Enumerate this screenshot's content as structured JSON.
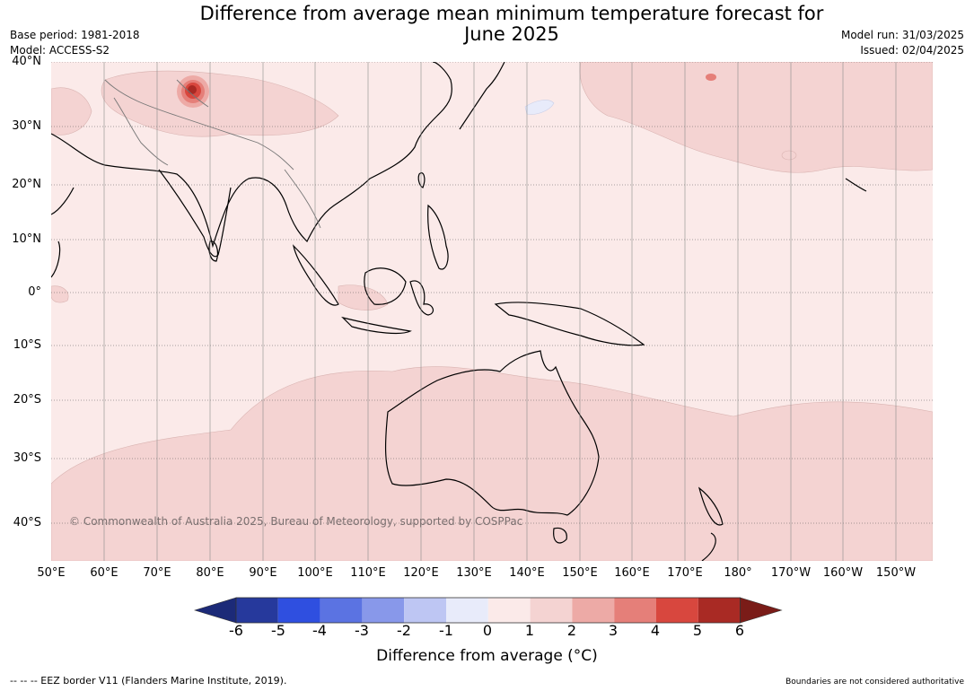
{
  "title": "Difference from average mean minimum temperature forecast for June 2025",
  "base_period": "Base period: 1981-2018",
  "model": "Model: ACCESS-S2",
  "model_run": "Model run: 31/03/2025",
  "issued": "Issued: 02/04/2025",
  "copyright": "© Commonwealth of Australia 2025, Bureau of Meteorology, supported by COSPPac",
  "lat_labels": [
    "40°N",
    "30°N",
    "20°N",
    "10°N",
    "0°",
    "10°S",
    "20°S",
    "30°S",
    "40°S"
  ],
  "lon_labels": [
    "50°E",
    "60°E",
    "70°E",
    "80°E",
    "90°E",
    "100°E",
    "110°E",
    "120°E",
    "130°E",
    "140°E",
    "150°E",
    "160°E",
    "170°E",
    "180°",
    "170°W",
    "160°W",
    "150°W"
  ],
  "colorbar": {
    "ticks": [
      "-6",
      "-5",
      "-4",
      "-3",
      "-2",
      "-1",
      "0",
      "1",
      "2",
      "3",
      "4",
      "5",
      "6"
    ],
    "colors": [
      "#26399c",
      "#2f4fe0",
      "#5b73e2",
      "#8898ea",
      "#bec6f3",
      "#e8ebfa",
      "#fbeae9",
      "#f4d3d2",
      "#edaaa6",
      "#e57f79",
      "#d8473e",
      "#a92a24"
    ],
    "under_color": "#1c2a78",
    "over_color": "#7a1c18",
    "label": "Difference from average (°C)"
  },
  "footer_left": "--  --  -- EEZ border V11 (Flanders Marine Institute, 2019).",
  "footer_right": "Boundaries are not considered authoritative",
  "chart_data": {
    "type": "heatmap",
    "title": "Difference from average mean minimum temperature forecast for June 2025",
    "xlabel": "",
    "ylabel": "",
    "colorbar_label": "Difference from average (°C)",
    "x_range": [
      "50°E",
      "150°W"
    ],
    "y_range": [
      "45°S",
      "40°N"
    ],
    "levels": [
      -6,
      -5,
      -4,
      -3,
      -2,
      -1,
      0,
      1,
      2,
      3,
      4,
      5,
      6
    ],
    "background_category": "0 to 1",
    "regions": [
      {
        "area": "western Himalaya / Kashmir",
        "range": "above 4, locally above 5"
      },
      {
        "area": "Australia interior and eastern Indian Ocean south of 15°S",
        "range": "1 to 2"
      },
      {
        "area": "northwest Pacific (30°N–40°N, 150°E–150°W)",
        "range": "1 to 2"
      },
      {
        "area": "Tibetan Plateau and Arabian Sea margin",
        "range": "1 to 2"
      },
      {
        "area": "South Pacific (south of 20°S, east of 170°E)",
        "range": "1 to 2"
      },
      {
        "area": "East China Sea near 35°N 137°E",
        "range": "-1 to 0"
      }
    ],
    "grid": true
  }
}
